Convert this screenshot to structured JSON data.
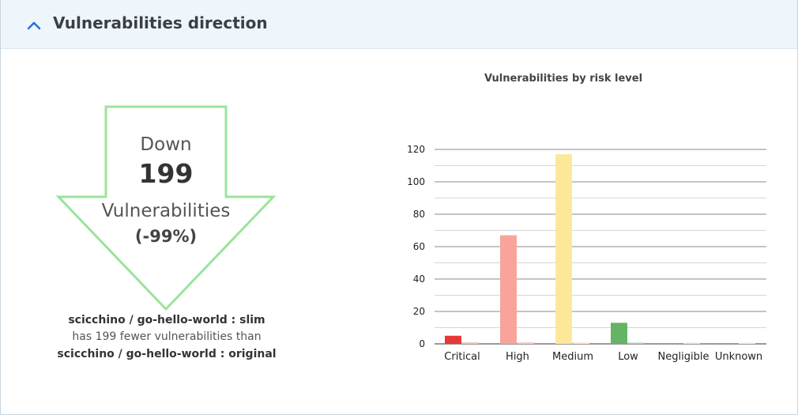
{
  "panel": {
    "title": "Vulnerabilities direction"
  },
  "direction": {
    "word": "Down",
    "count": "199",
    "label": "Vulnerabilities",
    "percent": "(-99%)",
    "arrow_color": "#9be39b"
  },
  "comparison": {
    "target": "scicchino / go-hello-world : slim",
    "text": "has 199 fewer vulnerabilities than",
    "baseline": "scicchino / go-hello-world : original"
  },
  "chart_data": {
    "type": "bar",
    "title": "Vulnerabilities by risk level",
    "categories": [
      "Critical",
      "High",
      "Medium",
      "Low",
      "Negligible",
      "Unknown"
    ],
    "ylim": [
      0,
      120
    ],
    "yticks": [
      0,
      20,
      40,
      60,
      80,
      100,
      120
    ],
    "grid": true,
    "series": [
      {
        "values": [
          5,
          67,
          117,
          13,
          0,
          0
        ]
      },
      {
        "values": [
          1,
          1,
          1,
          0,
          0,
          0
        ]
      }
    ],
    "colors": {
      "primary": [
        "#e53935",
        "#f8a49a",
        "#fde89a",
        "#66b366",
        "#d8d8d8",
        "#e4e4e4"
      ],
      "secondary": [
        "#f2c7c4",
        "#f6cfc9",
        "#fbefc4",
        "#a9d6a9",
        "#e8e8e8",
        "#eeeeee"
      ]
    }
  }
}
